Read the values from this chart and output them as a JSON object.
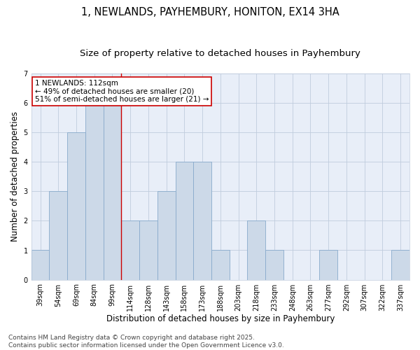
{
  "title_line1": "1, NEWLANDS, PAYHEMBURY, HONITON, EX14 3HA",
  "title_line2": "Size of property relative to detached houses in Payhembury",
  "xlabel": "Distribution of detached houses by size in Payhembury",
  "ylabel": "Number of detached properties",
  "categories": [
    "39sqm",
    "54sqm",
    "69sqm",
    "84sqm",
    "99sqm",
    "114sqm",
    "128sqm",
    "143sqm",
    "158sqm",
    "173sqm",
    "188sqm",
    "203sqm",
    "218sqm",
    "233sqm",
    "248sqm",
    "263sqm",
    "277sqm",
    "292sqm",
    "307sqm",
    "322sqm",
    "337sqm"
  ],
  "values": [
    1,
    3,
    5,
    6,
    6,
    2,
    2,
    3,
    4,
    4,
    1,
    0,
    2,
    1,
    0,
    0,
    1,
    0,
    0,
    0,
    1
  ],
  "bar_color": "#ccd9e8",
  "bar_edge_color": "#88aacc",
  "highlight_line_index": 5,
  "annotation_line1": "1 NEWLANDS: 112sqm",
  "annotation_line2": "← 49% of detached houses are smaller (20)",
  "annotation_line3": "51% of semi-detached houses are larger (21) →",
  "annotation_box_facecolor": "#ffffff",
  "annotation_box_edgecolor": "#cc0000",
  "redline_color": "#cc0000",
  "ylim": [
    0,
    7
  ],
  "yticks": [
    0,
    1,
    2,
    3,
    4,
    5,
    6,
    7
  ],
  "footnote": "Contains HM Land Registry data © Crown copyright and database right 2025.\nContains public sector information licensed under the Open Government Licence v3.0.",
  "bg_color": "#ffffff",
  "plot_bg_color": "#e8eef8",
  "grid_color": "#c0ccdd",
  "title_fontsize": 10.5,
  "subtitle_fontsize": 9.5,
  "axis_label_fontsize": 8.5,
  "tick_fontsize": 7,
  "annotation_fontsize": 7.5,
  "footnote_fontsize": 6.5
}
